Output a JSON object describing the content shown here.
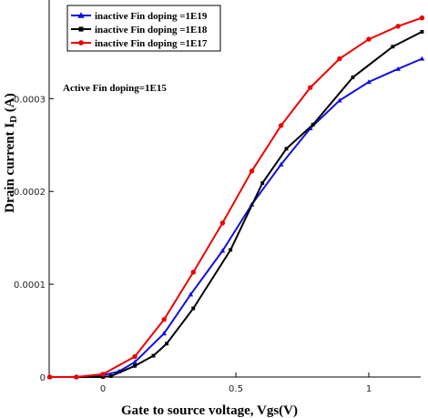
{
  "chart_data": {
    "type": "line",
    "xlabel": "Gate to source voltage, Vgs(V)",
    "ylabel": "Drain current I",
    "ylabel_sub": "D",
    "ylabel_unit": " (A)",
    "xlim": [
      -0.2,
      1.2
    ],
    "ylim": [
      0,
      0.00039
    ],
    "grid": false,
    "legend_position": "top-left",
    "xticks": [
      {
        "value": 0,
        "label": "0"
      },
      {
        "value": 0.5,
        "label": "0.5"
      },
      {
        "value": 1,
        "label": "1"
      }
    ],
    "yticks": [
      {
        "value": 0,
        "label": "0"
      },
      {
        "value": 0.0001,
        "label": "0.0001"
      },
      {
        "value": 0.0002,
        "label": "0.0002"
      },
      {
        "value": 0.0003,
        "label": "0.0003"
      }
    ],
    "annotation": "Active Fin doping=1E15",
    "series": [
      {
        "name": "inactive Fin doping =1E19",
        "color": "#1010e0",
        "marker": "triangle",
        "x": [
          -0.2,
          -0.1,
          0.0,
          0.06,
          0.12,
          0.23,
          0.33,
          0.45,
          0.56,
          0.67,
          0.78,
          0.89,
          1.0,
          1.11,
          1.2
        ],
        "y": [
          0.0,
          0.0,
          2e-06,
          6e-06,
          1.6e-05,
          4.7e-05,
          8.9e-05,
          0.000136,
          0.000186,
          0.000229,
          0.000268,
          0.000298,
          0.000318,
          0.000332,
          0.000343
        ]
      },
      {
        "name": "inactive Fin doping =1E18",
        "color": "#000000",
        "marker": "square",
        "x": [
          -0.2,
          -0.1,
          0.0,
          0.03,
          0.12,
          0.19,
          0.24,
          0.34,
          0.48,
          0.6,
          0.69,
          0.79,
          0.94,
          1.09,
          1.2
        ],
        "y": [
          0.0,
          0.0,
          0.0,
          1e-06,
          1.2e-05,
          2.3e-05,
          3.6e-05,
          7.4e-05,
          0.000137,
          0.000209,
          0.000246,
          0.000272,
          0.000323,
          0.000356,
          0.000372
        ]
      },
      {
        "name": "inactive Fin doping =1E17",
        "color": "#ee0000",
        "marker": "circle",
        "x": [
          -0.2,
          -0.1,
          0.0,
          0.12,
          0.23,
          0.34,
          0.45,
          0.56,
          0.67,
          0.78,
          0.89,
          1.0,
          1.11,
          1.2
        ],
        "y": [
          0.0,
          0.0,
          3e-06,
          2.2e-05,
          6.2e-05,
          0.000113,
          0.000166,
          0.000222,
          0.000271,
          0.000312,
          0.000343,
          0.000364,
          0.000378,
          0.000387
        ]
      }
    ]
  }
}
